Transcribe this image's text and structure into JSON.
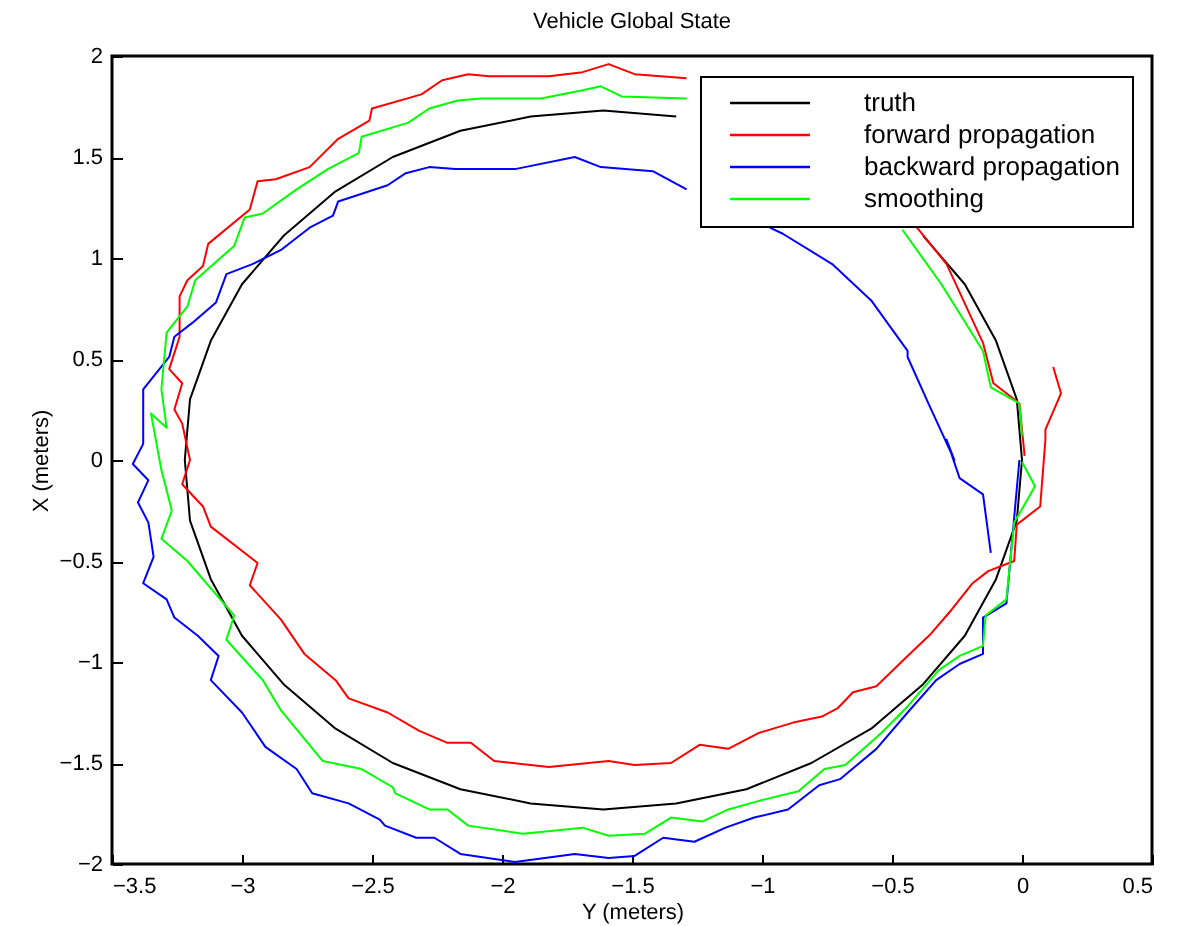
{
  "chart_data": {
    "type": "line",
    "title": "Vehicle Global State",
    "xlabel": "Y (meters)",
    "ylabel": "X (meters)",
    "xlim": [
      -3.5,
      0.5
    ],
    "xticks": [
      -3.5,
      -3,
      -2.5,
      -2,
      -1.5,
      -1,
      -0.5,
      0,
      0.5
    ],
    "ylim": [
      -2,
      2
    ],
    "yticks": [
      -2,
      -1.5,
      -1,
      -0.5,
      0,
      0.5,
      1,
      1.5,
      2
    ],
    "grid": false,
    "legend": "top right",
    "marker": "none",
    "line_style": "solid",
    "series": [
      {
        "name": "truth",
        "color": "#000000",
        "x": [
          0,
          -0.02,
          -0.1,
          -0.22,
          -0.38,
          null,
          -1.33,
          -1.61,
          -1.89,
          -2.16,
          -2.42,
          -2.64,
          -2.84,
          -3.0,
          -3.12,
          -3.2,
          -3.22,
          -3.2,
          -3.12,
          -3.0,
          -2.84,
          -2.64,
          -2.42,
          -2.16,
          -1.89,
          -1.61,
          -1.33,
          -1.06,
          -0.81,
          -0.58,
          -0.38,
          -0.22,
          -0.1,
          -0.02,
          0
        ],
        "values": [
          0,
          0.3,
          0.59,
          0.87,
          1.11,
          null,
          1.7,
          1.73,
          1.7,
          1.63,
          1.5,
          1.33,
          1.11,
          0.87,
          0.59,
          0.3,
          0,
          -0.3,
          -0.59,
          -0.87,
          -1.11,
          -1.33,
          -1.5,
          -1.63,
          -1.7,
          -1.73,
          -1.7,
          -1.63,
          -1.5,
          -1.33,
          -1.11,
          -0.87,
          -0.59,
          -0.3,
          0
        ]
      },
      {
        "name": "forward propagation",
        "color": "#ff0000",
        "x": [
          0.01,
          -0.01,
          -0.11,
          -0.15,
          -0.29,
          -0.41,
          null,
          -1.29,
          -1.49,
          -1.59,
          -1.69,
          -1.82,
          -2.05,
          -2.13,
          -2.23,
          -2.31,
          -2.5,
          -2.51,
          -2.63,
          -2.74,
          -2.87,
          -2.94,
          -2.97,
          -3.13,
          -3.15,
          -3.21,
          -3.24,
          -3.24,
          -3.28,
          -3.23,
          -3.26,
          -3.23,
          -3.2,
          -3.23,
          -3.15,
          -3.12,
          -2.94,
          -2.97,
          -2.85,
          -2.76,
          -2.64,
          -2.59,
          -2.44,
          -2.32,
          -2.21,
          -2.12,
          -2.03,
          -1.82,
          -1.59,
          -1.49,
          -1.35,
          -1.24,
          -1.13,
          -1.01,
          -0.88,
          -0.77,
          -0.71,
          -0.65,
          -0.56,
          -0.44,
          -0.35,
          -0.27,
          -0.19,
          -0.13,
          -0.03,
          -0.02,
          0.07,
          0.09,
          0.09,
          0.15,
          0.12
        ],
        "values": [
          0.02,
          0.28,
          0.38,
          0.58,
          0.97,
          1.16,
          null,
          1.89,
          1.91,
          1.96,
          1.92,
          1.9,
          1.9,
          1.91,
          1.88,
          1.81,
          1.74,
          1.68,
          1.59,
          1.45,
          1.39,
          1.38,
          1.24,
          1.07,
          0.96,
          0.89,
          0.81,
          0.61,
          0.45,
          0.38,
          0.25,
          0.18,
          0.0,
          -0.12,
          -0.23,
          -0.33,
          -0.51,
          -0.62,
          -0.79,
          -0.96,
          -1.09,
          -1.18,
          -1.25,
          -1.34,
          -1.4,
          -1.4,
          -1.49,
          -1.52,
          -1.49,
          -1.51,
          -1.5,
          -1.41,
          -1.43,
          -1.35,
          -1.3,
          -1.27,
          -1.23,
          -1.15,
          -1.12,
          -0.97,
          -0.86,
          -0.74,
          -0.61,
          -0.55,
          -0.5,
          -0.32,
          -0.23,
          0.1,
          0.15,
          0.33,
          0.46
        ]
      },
      {
        "name": "backward propagation",
        "color": "#0000ff",
        "x": [
          -0.12,
          -0.15,
          -0.24,
          -0.29,
          -0.26,
          -0.36,
          -0.44,
          -0.44,
          -0.58,
          -0.73,
          -0.92,
          -0.97,
          null,
          -1.29,
          -1.42,
          -1.62,
          -1.72,
          -1.95,
          -2.18,
          -2.28,
          -2.37,
          -2.44,
          -2.63,
          -2.65,
          -2.74,
          -2.85,
          -2.96,
          -3.06,
          -3.1,
          -3.19,
          -3.26,
          -3.28,
          -3.38,
          -3.38,
          -3.42,
          -3.36,
          -3.4,
          -3.36,
          -3.34,
          -3.38,
          -3.29,
          -3.26,
          -3.17,
          -3.09,
          -3.12,
          -3.0,
          -2.91,
          -2.79,
          -2.73,
          -2.59,
          -2.47,
          -2.45,
          -2.33,
          -2.26,
          -2.16,
          -1.95,
          -1.72,
          -1.59,
          -1.49,
          -1.38,
          -1.26,
          -1.14,
          -1.03,
          -0.9,
          -0.78,
          -0.7,
          -0.56,
          -0.44,
          -0.33,
          -0.24,
          -0.15,
          -0.15,
          -0.06,
          -0.01
        ],
        "values": [
          -0.46,
          -0.17,
          -0.09,
          0.1,
          0.0,
          0.28,
          0.51,
          0.54,
          0.79,
          0.97,
          1.12,
          1.15,
          null,
          1.34,
          1.43,
          1.45,
          1.5,
          1.44,
          1.44,
          1.45,
          1.42,
          1.36,
          1.28,
          1.21,
          1.15,
          1.04,
          0.97,
          0.92,
          0.78,
          0.68,
          0.61,
          0.51,
          0.35,
          0.08,
          -0.02,
          -0.1,
          -0.21,
          -0.31,
          -0.48,
          -0.61,
          -0.69,
          -0.78,
          -0.87,
          -0.97,
          -1.09,
          -1.25,
          -1.42,
          -1.53,
          -1.65,
          -1.7,
          -1.78,
          -1.81,
          -1.87,
          -1.87,
          -1.95,
          -1.99,
          -1.95,
          -1.97,
          -1.96,
          -1.87,
          -1.89,
          -1.82,
          -1.77,
          -1.73,
          -1.61,
          -1.58,
          -1.43,
          -1.25,
          -1.09,
          -1.01,
          -0.96,
          -0.78,
          -0.71,
          0.0
        ]
      },
      {
        "name": "smoothing",
        "color": "#00ff00",
        "x": [
          0.0,
          -0.01,
          -0.12,
          -0.15,
          -0.31,
          -0.46,
          null,
          -1.29,
          -1.54,
          -1.62,
          -1.69,
          -1.85,
          -2.08,
          -2.17,
          -2.28,
          -2.36,
          -2.54,
          -2.55,
          -2.67,
          -2.79,
          -2.92,
          -2.99,
          -3.03,
          -3.18,
          -3.21,
          -3.29,
          -3.31,
          -3.29,
          -3.35,
          -3.32,
          -3.31,
          -3.27,
          -3.31,
          -3.21,
          -3.03,
          -3.06,
          -2.92,
          -2.85,
          -2.69,
          -2.54,
          -2.42,
          -2.41,
          -2.28,
          -2.21,
          -2.13,
          -1.92,
          -1.69,
          -1.59,
          -1.45,
          -1.35,
          -1.23,
          -1.13,
          -0.99,
          -0.86,
          -0.76,
          -0.68,
          -0.54,
          -0.44,
          -0.32,
          -0.24,
          -0.15,
          -0.14,
          -0.06,
          -0.03,
          0.05,
          0.0
        ],
        "values": [
          0.12,
          0.28,
          0.36,
          0.54,
          0.87,
          1.14,
          null,
          1.79,
          1.8,
          1.85,
          1.83,
          1.79,
          1.79,
          1.78,
          1.74,
          1.67,
          1.6,
          1.52,
          1.44,
          1.34,
          1.22,
          1.2,
          1.06,
          0.89,
          0.76,
          0.63,
          0.35,
          0.16,
          0.23,
          0.02,
          -0.05,
          -0.25,
          -0.39,
          -0.5,
          -0.77,
          -0.89,
          -1.09,
          -1.24,
          -1.49,
          -1.53,
          -1.62,
          -1.65,
          -1.73,
          -1.73,
          -1.81,
          -1.85,
          -1.82,
          -1.86,
          -1.85,
          -1.77,
          -1.79,
          -1.73,
          -1.68,
          -1.64,
          -1.53,
          -1.51,
          -1.35,
          -1.22,
          -1.04,
          -0.97,
          -0.92,
          -0.77,
          -0.69,
          -0.31,
          -0.13,
          -0.01
        ]
      }
    ]
  }
}
